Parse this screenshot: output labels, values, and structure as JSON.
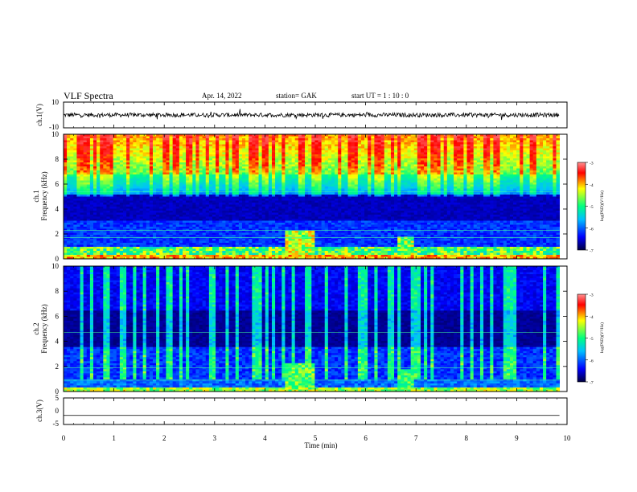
{
  "header": {
    "title": "VLF Spectra",
    "date": "Apr. 14, 2022",
    "station": "station= GAK",
    "start": "start  UT =   1 : 10 : 0"
  },
  "colors": {
    "background": "#ffffff",
    "axis": "#000000",
    "colormap": [
      "#000040",
      "#0000ff",
      "#00c0ff",
      "#00ff80",
      "#ffff00",
      "#ff0000",
      "#ff8080"
    ]
  },
  "chart_data": [
    {
      "type": "line",
      "id": "ch1_waveform",
      "ylabel": "ch.1(V)",
      "ylim": [
        -10,
        10
      ],
      "yticks": [
        "10",
        "-10"
      ],
      "x_range": [
        0,
        9.85
      ],
      "baseline": 0
    },
    {
      "type": "heatmap",
      "id": "ch1_spectrogram",
      "ylabel": "ch.1\nFrequency (kHz)",
      "ylim": [
        0,
        10
      ],
      "yticks": [
        "0",
        "2",
        "4",
        "6",
        "8",
        "10"
      ],
      "colorbar": {
        "label": "log(PSD)(V²/Hz)",
        "range": [
          -7,
          -3
        ],
        "ticks": [
          "-3",
          "-4",
          "-5",
          "-6",
          "-7"
        ]
      }
    },
    {
      "type": "heatmap",
      "id": "ch2_spectrogram",
      "ylabel": "ch.2\nFrequency (kHz)",
      "ylim": [
        0,
        10
      ],
      "yticks": [
        "0",
        "2",
        "4",
        "6",
        "8",
        "10"
      ],
      "colorbar": {
        "label": "log(PSD)(V²/Hz)",
        "range": [
          -7,
          -3
        ],
        "ticks": [
          "-3",
          "-4",
          "-5",
          "-6",
          "-7"
        ]
      }
    },
    {
      "type": "line",
      "id": "ch3_waveform",
      "ylabel": "ch.3(V)",
      "ylim": [
        -5,
        5
      ],
      "yticks": [
        "5",
        "0",
        "-5"
      ],
      "x_range": [
        0,
        9.85
      ],
      "baseline": -1.6
    }
  ],
  "xaxis": {
    "label": "Time (min)",
    "range": [
      0,
      10
    ],
    "ticks": [
      "0",
      "1",
      "2",
      "3",
      "4",
      "5",
      "6",
      "7",
      "8",
      "9",
      "10"
    ]
  }
}
